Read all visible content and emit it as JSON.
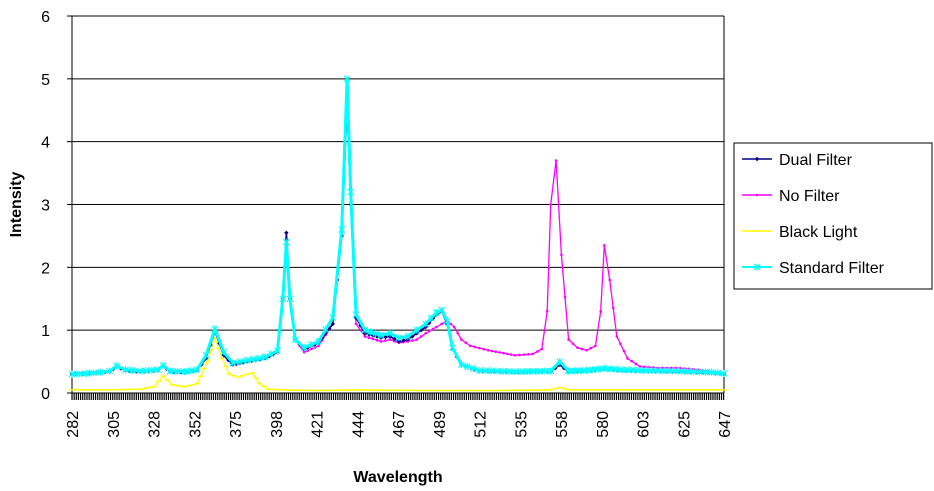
{
  "chart_data": {
    "type": "line",
    "title": "",
    "xlabel": "Wavelength",
    "ylabel": "Intensity",
    "ylim": [
      0,
      6
    ],
    "xlim": [
      282,
      647
    ],
    "grid": true,
    "legend_position": "right",
    "yticks": [
      "0",
      "1",
      "2",
      "3",
      "4",
      "5",
      "6"
    ],
    "xticks": [
      "282",
      "305",
      "328",
      "352",
      "375",
      "398",
      "421",
      "444",
      "467",
      "489",
      "512",
      "535",
      "558",
      "580",
      "603",
      "625",
      "647"
    ],
    "series": [
      {
        "name": "Dual Filter",
        "color": "#000080",
        "marker": "diamond",
        "x": [
          282,
          290,
          298,
          303,
          307,
          312,
          320,
          330,
          333,
          337,
          345,
          352,
          357,
          362,
          367,
          372,
          380,
          390,
          397,
          400,
          402,
          404,
          407,
          412,
          420,
          428,
          433,
          436,
          438,
          441,
          446,
          455,
          460,
          465,
          470,
          475,
          480,
          486,
          489,
          492,
          495,
          500,
          510,
          530,
          550,
          555,
          560,
          570,
          580,
          590,
          600,
          620,
          640,
          647
        ],
        "values": [
          0.3,
          0.31,
          0.33,
          0.34,
          0.42,
          0.36,
          0.34,
          0.36,
          0.43,
          0.34,
          0.33,
          0.36,
          0.55,
          0.98,
          0.6,
          0.45,
          0.5,
          0.55,
          0.65,
          1.5,
          2.55,
          1.5,
          0.85,
          0.7,
          0.8,
          1.1,
          2.5,
          4.6,
          3.0,
          1.2,
          0.95,
          0.88,
          0.9,
          0.82,
          0.85,
          0.95,
          1.05,
          1.25,
          1.3,
          1.1,
          0.7,
          0.45,
          0.35,
          0.33,
          0.34,
          0.45,
          0.34,
          0.35,
          0.38,
          0.36,
          0.35,
          0.34,
          0.32,
          0.3
        ]
      },
      {
        "name": "No Filter",
        "color": "#ff00ff",
        "marker": "dot",
        "x": [
          282,
          290,
          298,
          303,
          307,
          312,
          320,
          330,
          333,
          337,
          345,
          352,
          357,
          362,
          367,
          372,
          380,
          390,
          397,
          400,
          402,
          404,
          407,
          412,
          420,
          428,
          433,
          436,
          438,
          441,
          446,
          455,
          460,
          465,
          470,
          475,
          480,
          486,
          489,
          492,
          496,
          500,
          505,
          515,
          530,
          540,
          545,
          548,
          550,
          553,
          556,
          560,
          565,
          570,
          575,
          578,
          580,
          583,
          587,
          593,
          600,
          610,
          620,
          630,
          640,
          647
        ],
        "values": [
          0.3,
          0.31,
          0.33,
          0.34,
          0.42,
          0.36,
          0.34,
          0.36,
          0.43,
          0.34,
          0.33,
          0.36,
          0.55,
          0.98,
          0.6,
          0.45,
          0.5,
          0.55,
          0.65,
          1.5,
          2.45,
          1.5,
          0.85,
          0.65,
          0.75,
          1.1,
          2.5,
          4.7,
          3.0,
          1.1,
          0.9,
          0.82,
          0.85,
          0.8,
          0.82,
          0.85,
          0.95,
          1.05,
          1.1,
          1.15,
          1.05,
          0.85,
          0.75,
          0.68,
          0.6,
          0.62,
          0.7,
          1.3,
          3.0,
          3.7,
          2.2,
          0.85,
          0.72,
          0.68,
          0.75,
          1.3,
          2.35,
          1.8,
          0.9,
          0.55,
          0.42,
          0.4,
          0.4,
          0.38,
          0.34,
          0.3
        ]
      },
      {
        "name": "Black Light",
        "color": "#ffff00",
        "marker": "dash",
        "x": [
          282,
          300,
          320,
          328,
          333,
          338,
          345,
          352,
          358,
          362,
          366,
          370,
          375,
          380,
          383,
          387,
          392,
          400,
          420,
          440,
          480,
          520,
          550,
          555,
          560,
          600,
          647
        ],
        "values": [
          0.05,
          0.05,
          0.06,
          0.1,
          0.27,
          0.13,
          0.1,
          0.15,
          0.5,
          0.88,
          0.55,
          0.3,
          0.25,
          0.3,
          0.32,
          0.15,
          0.06,
          0.05,
          0.04,
          0.05,
          0.04,
          0.04,
          0.05,
          0.09,
          0.05,
          0.05,
          0.05
        ]
      },
      {
        "name": "Standard Filter",
        "color": "#00ffff",
        "marker": "star",
        "x": [
          282,
          290,
          298,
          303,
          307,
          312,
          320,
          330,
          333,
          337,
          345,
          352,
          357,
          362,
          367,
          372,
          380,
          390,
          397,
          400,
          402,
          404,
          407,
          412,
          420,
          428,
          433,
          436,
          438,
          441,
          446,
          455,
          460,
          465,
          470,
          475,
          480,
          486,
          489,
          492,
          495,
          500,
          510,
          530,
          550,
          555,
          560,
          570,
          580,
          590,
          600,
          620,
          640,
          647
        ],
        "values": [
          0.3,
          0.31,
          0.33,
          0.35,
          0.43,
          0.37,
          0.35,
          0.37,
          0.44,
          0.35,
          0.34,
          0.37,
          0.6,
          1.02,
          0.65,
          0.48,
          0.52,
          0.57,
          0.67,
          1.5,
          2.4,
          1.5,
          0.85,
          0.72,
          0.82,
          1.2,
          2.6,
          5.0,
          3.2,
          1.25,
          1.0,
          0.92,
          0.95,
          0.88,
          0.9,
          1.0,
          1.1,
          1.28,
          1.32,
          1.15,
          0.72,
          0.45,
          0.36,
          0.34,
          0.35,
          0.5,
          0.35,
          0.36,
          0.39,
          0.37,
          0.36,
          0.35,
          0.33,
          0.31
        ]
      }
    ]
  }
}
